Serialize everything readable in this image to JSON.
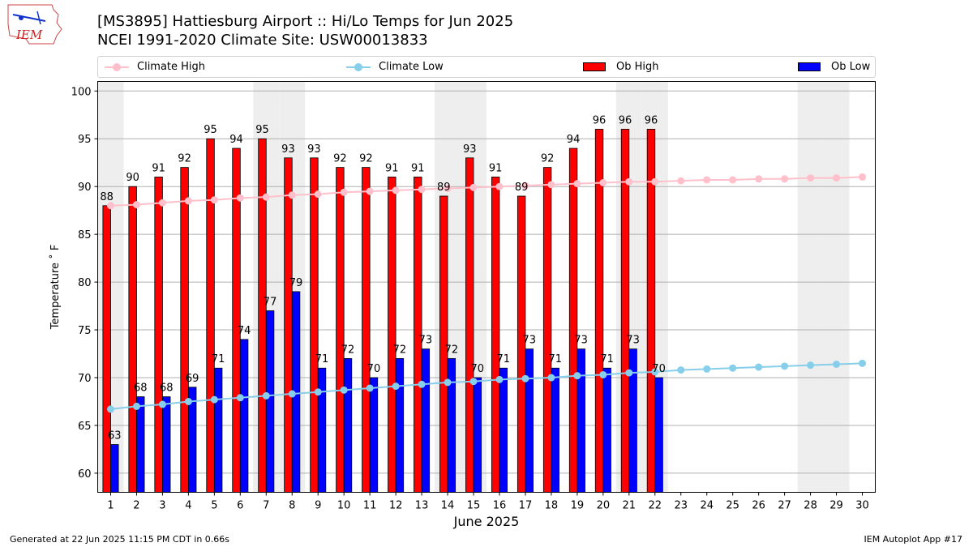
{
  "header": {
    "title_line1": "[MS3895] Hattiesburg Airport :: Hi/Lo Temps for Jun 2025",
    "title_line2": "NCEI 1991-2020 Climate Site: USW00013833",
    "logo_text": "IEM"
  },
  "legend": {
    "climate_high": "Climate High",
    "climate_low": "Climate Low",
    "ob_high": "Ob High",
    "ob_low": "Ob Low"
  },
  "footer": {
    "left": "Generated at 22 Jun 2025 11:15 PM CDT in 0.66s",
    "right": "IEM Autoplot App #17"
  },
  "colors": {
    "ob_high": "#ff0000",
    "ob_low": "#0000ff",
    "climate_high": "#ffc0cb",
    "climate_low": "#87ceeb",
    "weekend_shade": "#eeeeee",
    "grid": "#b0b0b0"
  },
  "chart_data": {
    "type": "bar",
    "xlabel": "June 2025",
    "ylabel": "Temperature ˚ F",
    "ylim": [
      58,
      101
    ],
    "yticks": [
      60,
      65,
      70,
      75,
      80,
      85,
      90,
      95,
      100
    ],
    "grid": "horizontal",
    "legend_position": "top",
    "days": [
      1,
      2,
      3,
      4,
      5,
      6,
      7,
      8,
      9,
      10,
      11,
      12,
      13,
      14,
      15,
      16,
      17,
      18,
      19,
      20,
      21,
      22,
      23,
      24,
      25,
      26,
      27,
      28,
      29,
      30
    ],
    "weekend_days": [
      1,
      7,
      8,
      14,
      15,
      21,
      22,
      28,
      29
    ],
    "series": [
      {
        "name": "Ob High",
        "kind": "bar",
        "values": [
          88,
          90,
          91,
          92,
          95,
          94,
          95,
          93,
          93,
          92,
          92,
          91,
          91,
          89,
          93,
          91,
          89,
          92,
          94,
          96,
          96,
          96
        ]
      },
      {
        "name": "Ob Low",
        "kind": "bar",
        "values": [
          63,
          68,
          68,
          69,
          71,
          74,
          77,
          79,
          71,
          72,
          70,
          72,
          73,
          72,
          70,
          71,
          73,
          71,
          73,
          71,
          73,
          70
        ]
      },
      {
        "name": "Climate High",
        "kind": "line",
        "values": [
          88.0,
          88.1,
          88.3,
          88.5,
          88.6,
          88.8,
          88.9,
          89.1,
          89.2,
          89.4,
          89.5,
          89.6,
          89.7,
          89.8,
          89.9,
          90.0,
          90.1,
          90.2,
          90.3,
          90.4,
          90.5,
          90.5,
          90.6,
          90.7,
          90.7,
          90.8,
          90.8,
          90.9,
          90.9,
          91.0
        ]
      },
      {
        "name": "Climate Low",
        "kind": "line",
        "values": [
          66.7,
          67.0,
          67.2,
          67.5,
          67.7,
          67.9,
          68.1,
          68.3,
          68.5,
          68.7,
          68.9,
          69.1,
          69.3,
          69.5,
          69.6,
          69.8,
          69.9,
          70.0,
          70.2,
          70.3,
          70.5,
          70.6,
          70.8,
          70.9,
          71.0,
          71.1,
          71.2,
          71.3,
          71.4,
          71.5
        ]
      }
    ]
  }
}
